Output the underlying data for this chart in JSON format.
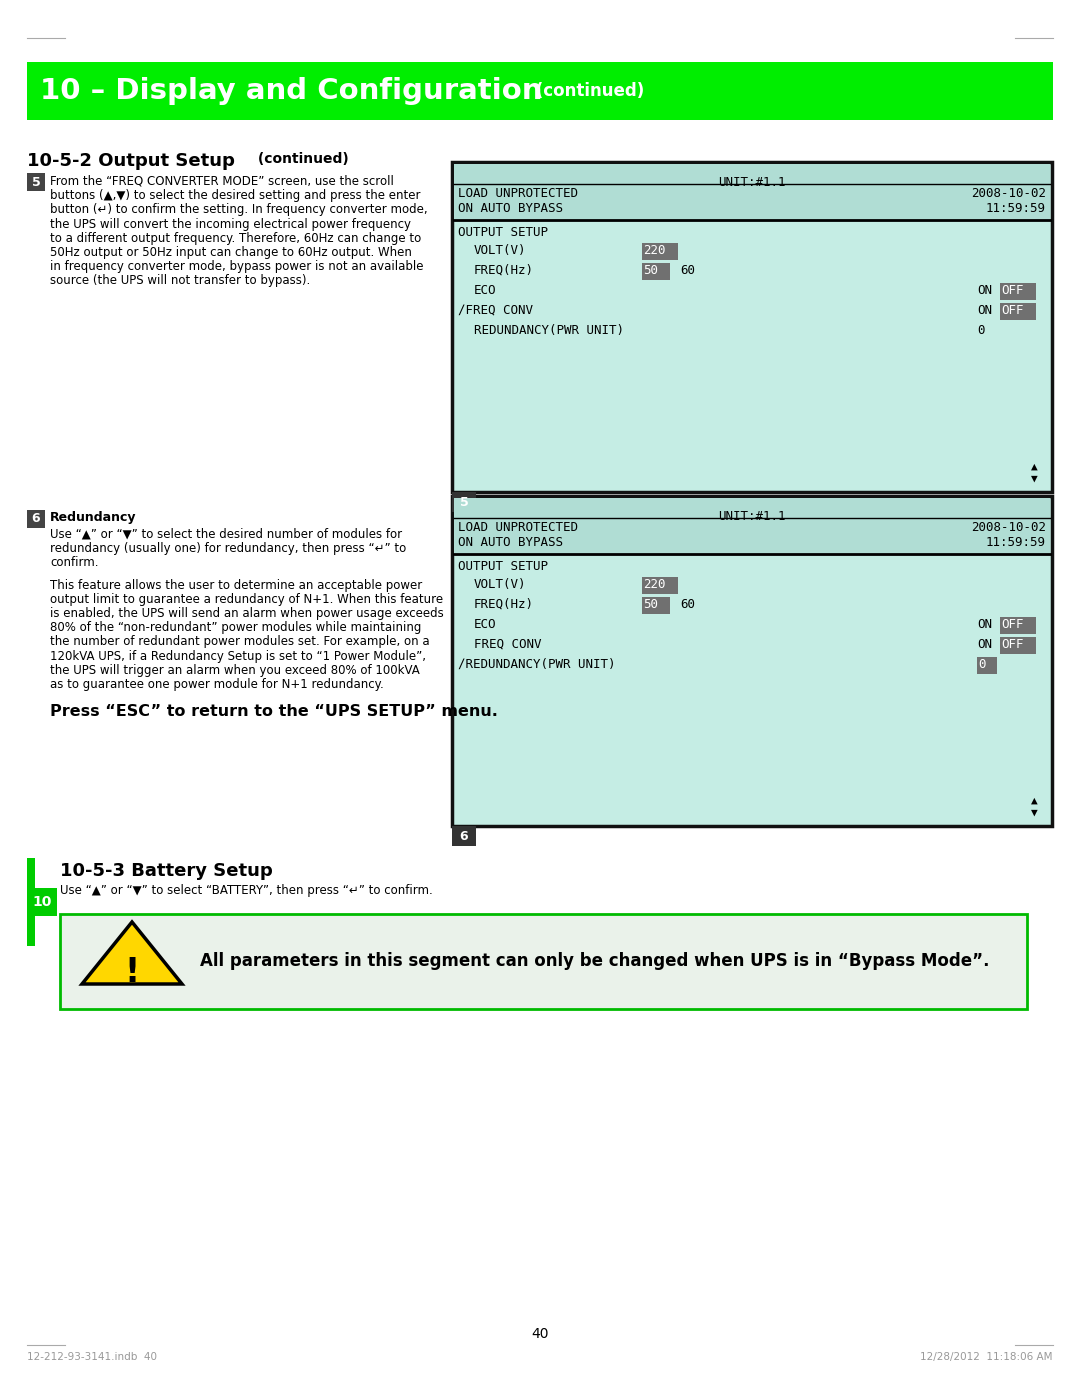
{
  "title_main": "10 – Display and Configuration",
  "title_continued": " (continued)",
  "section_title": "10-5-2 Output Setup",
  "section_continued": "(continued)",
  "battery_section": "10-5-3 Battery Setup",
  "battery_text": "Use “▲” or “▼” to select “BATTERY”, then press “↵” to confirm.",
  "warning_text": "All parameters in this segment can only be changed when UPS is in “Bypass Mode”.",
  "press_esc_text": "Press “ESC” to return to the “UPS SETUP” menu.",
  "page_number": "40",
  "footer_left": "12-212-93-3141.indb  40",
  "footer_right": "12/28/2012  11:18:06 AM",
  "green_header_color": "#00ee00",
  "screen_bg_color": "#c5ede4",
  "screen_header_bg": "#b0ddd4",
  "highlight_gray": "#707070",
  "warning_bg": "#eaf2ea",
  "warning_border": "#00bb00",
  "tab_green": "#00cc00",
  "step5_lines": [
    "From the “FREQ CONVERTER MODE” screen, use the scroll",
    "buttons (▲,▼) to select the desired setting and press the enter",
    "button (↵) to confirm the setting. In frequency converter mode,",
    "the UPS will convert the incoming electrical power frequency",
    "to a different output frequency. Therefore, 60Hz can change to",
    "50Hz output or 50Hz input can change to 60Hz output. When",
    "in frequency converter mode, bypass power is not an available",
    "source (the UPS will not transfer to bypass)."
  ],
  "step6_intro_lines": [
    "Use “▲” or “▼” to select the desired number of modules for",
    "redundancy (usually one) for redundancy, then press “↵” to",
    "confirm."
  ],
  "step6_body_lines": [
    "This feature allows the user to determine an acceptable power",
    "output limit to guarantee a redundancy of N+1. When this feature",
    "is enabled, the UPS will send an alarm when power usage exceeds",
    "80% of the “non-redundant” power modules while maintaining",
    "the number of redundant power modules set. For example, on a",
    "120kVA UPS, if a Redundancy Setup is set to “1 Power Module”,",
    "the UPS will trigger an alarm when you exceed 80% of 100kVA",
    "as to guarantee one power module for N+1 redundancy."
  ]
}
